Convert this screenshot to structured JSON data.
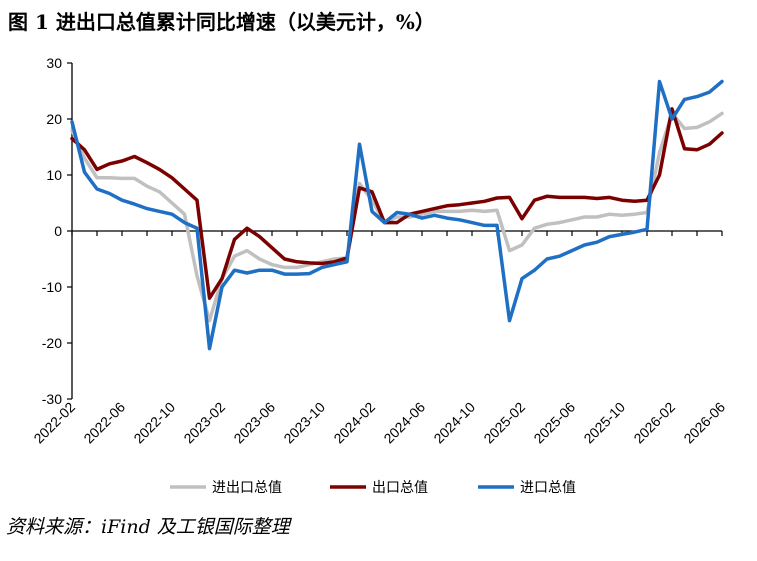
{
  "title": "图 1  进出口总值累计同比增速（以美元计，%）",
  "source": "资料来源：iFind 及工银国际整理",
  "chart_data": {
    "type": "line",
    "title": "图 1  进出口总值累计同比增速（以美元计，%）",
    "xlabel": "",
    "ylabel": "",
    "ylim": [
      -30,
      30
    ],
    "yticks": [
      -30,
      -20,
      -10,
      0,
      10,
      20,
      30
    ],
    "grid": false,
    "legend_position": "bottom",
    "x": [
      "2022-02",
      "2022-03",
      "2022-04",
      "2022-05",
      "2022-06",
      "2022-07",
      "2022-08",
      "2022-09",
      "2022-10",
      "2022-11",
      "2022-12",
      "2023-01",
      "2023-02",
      "2023-03",
      "2023-04",
      "2023-05",
      "2023-06",
      "2023-07",
      "2023-08",
      "2023-09",
      "2023-10",
      "2023-11",
      "2023-12",
      "2024-01",
      "2024-02",
      "2024-03",
      "2024-04",
      "2024-05",
      "2024-06",
      "2024-07",
      "2024-08",
      "2024-09",
      "2024-10",
      "2024-11",
      "2024-12",
      "2025-01",
      "2025-02",
      "2025-03",
      "2025-04",
      "2025-05",
      "2025-06",
      "2025-07",
      "2025-08",
      "2025-09",
      "2025-10",
      "2025-11",
      "2025-12",
      "2026-01",
      "2026-02",
      "2026-03",
      "2026-04",
      "2026-05",
      "2026-06"
    ],
    "x_tick_labels": [
      "2022-02",
      "2022-06",
      "2022-10",
      "2023-02",
      "2023-06",
      "2023-10",
      "2024-02",
      "2024-06",
      "2024-10",
      "2025-02",
      "2025-06",
      "2025-10",
      "2026-02",
      "2026-06"
    ],
    "series": [
      {
        "name": "进出口总值",
        "color": "#c0c0c0",
        "values": [
          18.0,
          13.0,
          9.5,
          9.5,
          9.4,
          9.4,
          8.0,
          7.0,
          5.0,
          3.0,
          -8.0,
          -16.0,
          -8.5,
          -4.5,
          -3.5,
          -5.0,
          -6.0,
          -6.5,
          -6.5,
          -6.0,
          -5.5,
          -5.0,
          -4.8,
          8.5,
          5.5,
          1.5,
          2.5,
          2.5,
          3.0,
          3.5,
          3.5,
          3.5,
          3.7,
          3.5,
          3.7,
          -3.5,
          -2.5,
          0.5,
          1.2,
          1.5,
          2.0,
          2.5,
          2.5,
          3.0,
          2.8,
          3.0,
          3.3,
          14.0,
          21.0,
          18.3,
          18.5,
          19.5,
          21.0
        ]
      },
      {
        "name": "出口总值",
        "color": "#7b0000",
        "values": [
          16.5,
          14.5,
          11.0,
          12.0,
          12.5,
          13.3,
          12.2,
          11.0,
          9.5,
          7.5,
          5.5,
          -12.0,
          -8.5,
          -1.5,
          0.5,
          -1.0,
          -3.0,
          -5.0,
          -5.5,
          -5.7,
          -5.8,
          -5.5,
          -4.8,
          7.7,
          7.0,
          1.5,
          1.5,
          3.0,
          3.5,
          4.0,
          4.5,
          4.7,
          5.0,
          5.3,
          5.9,
          6.0,
          2.2,
          5.5,
          6.2,
          6.0,
          6.0,
          6.0,
          5.8,
          6.0,
          5.5,
          5.3,
          5.5,
          10.0,
          21.8,
          14.7,
          14.5,
          15.5,
          17.5
        ]
      },
      {
        "name": "进口总值",
        "color": "#1f6fc5",
        "values": [
          19.5,
          10.5,
          7.5,
          6.7,
          5.5,
          4.8,
          4.0,
          3.5,
          3.0,
          1.5,
          0.5,
          -21.0,
          -10.0,
          -7.0,
          -7.5,
          -7.0,
          -7.0,
          -7.7,
          -7.7,
          -7.6,
          -6.5,
          -6.0,
          -5.5,
          15.5,
          3.5,
          1.5,
          3.3,
          3.0,
          2.3,
          2.8,
          2.3,
          2.0,
          1.5,
          1.0,
          1.0,
          -16.0,
          -8.5,
          -7.0,
          -5.0,
          -4.5,
          -3.5,
          -2.5,
          -2.0,
          -1.0,
          -0.6,
          -0.2,
          0.3,
          26.7,
          20.0,
          23.5,
          24.0,
          24.8,
          26.7
        ]
      }
    ]
  }
}
